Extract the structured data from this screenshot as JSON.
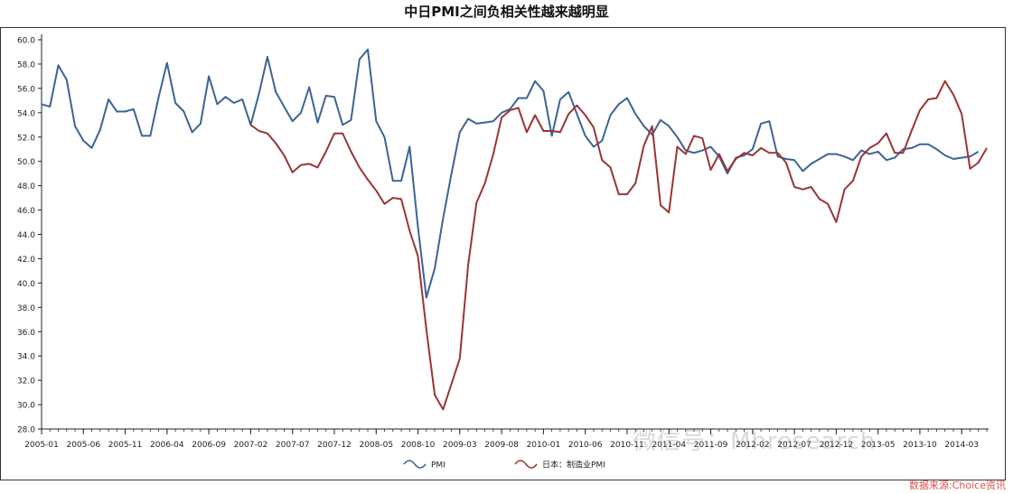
{
  "chart_data": {
    "type": "line",
    "title": "中日PMI之间负相关性越来越明显",
    "source": "数据来源:Choice资讯",
    "watermark": "微信号：Mhresearch",
    "ylim": [
      28.0,
      60.0
    ],
    "y_ticks": [
      "28.0",
      "30.0",
      "32.0",
      "34.0",
      "36.0",
      "38.0",
      "40.0",
      "42.0",
      "44.0",
      "46.0",
      "48.0",
      "50.0",
      "52.0",
      "54.0",
      "56.0",
      "58.0",
      "60.0"
    ],
    "x_tick_labels": [
      "2005-01",
      "2005-06",
      "2005-11",
      "2006-04",
      "2006-09",
      "2007-02",
      "2007-07",
      "2007-12",
      "2008-05",
      "2008-10",
      "2009-03",
      "2009-08",
      "2010-01",
      "2010-06",
      "2010-11",
      "2011-04",
      "2011-09",
      "2012-02",
      "2012-07",
      "2012-12",
      "2013-05",
      "2013-10",
      "2014-03"
    ],
    "legend_position": "bottom-center",
    "grid": false,
    "x_start": "2005-01",
    "x_end": "2014-06",
    "series": [
      {
        "name": "PMI",
        "color": "#3c6494",
        "start": "2005-01",
        "values": [
          54.7,
          54.5,
          57.9,
          56.7,
          52.9,
          51.7,
          51.1,
          52.6,
          55.1,
          54.1,
          54.1,
          54.3,
          52.1,
          52.1,
          55.3,
          58.1,
          54.8,
          54.1,
          52.4,
          53.1,
          57.0,
          54.7,
          55.3,
          54.8,
          55.1,
          53.0,
          55.6,
          58.6,
          55.7,
          54.5,
          53.3,
          54.0,
          56.1,
          53.2,
          55.4,
          55.3,
          53.0,
          53.4,
          58.4,
          59.2,
          53.3,
          52.0,
          48.4,
          48.4,
          51.2,
          44.6,
          38.8,
          41.2,
          45.3,
          49.0,
          52.4,
          53.5,
          53.1,
          53.2,
          53.3,
          54.0,
          54.3,
          55.2,
          55.2,
          56.6,
          55.8,
          52.1,
          55.1,
          55.7,
          53.9,
          52.1,
          51.2,
          51.7,
          53.8,
          54.7,
          55.2,
          53.9,
          52.9,
          52.2,
          53.4,
          52.9,
          52.0,
          50.9,
          50.7,
          50.9,
          51.2,
          50.4,
          49.0,
          50.3,
          50.5,
          51.0,
          53.1,
          53.3,
          50.4,
          50.2,
          50.1,
          49.2,
          49.8,
          50.2,
          50.6,
          50.6,
          50.4,
          50.1,
          50.9,
          50.6,
          50.8,
          50.1,
          50.3,
          51.0,
          51.1,
          51.4,
          51.4,
          51.0,
          50.5,
          50.2,
          50.3,
          50.4,
          50.8
        ]
      },
      {
        "name": "日本：制造业PMI",
        "color": "#9a3535",
        "start": "2007-02",
        "values": [
          53.0,
          52.5,
          52.3,
          51.5,
          50.5,
          49.1,
          49.7,
          49.8,
          49.5,
          50.8,
          52.3,
          52.3,
          50.8,
          49.5,
          48.5,
          47.6,
          46.5,
          47.0,
          46.9,
          44.3,
          42.2,
          36.2,
          30.8,
          29.6,
          31.7,
          33.8,
          41.5,
          46.6,
          48.2,
          50.6,
          53.6,
          54.2,
          54.4,
          52.4,
          53.8,
          52.5,
          52.5,
          52.4,
          53.9,
          54.6,
          53.8,
          52.8,
          50.1,
          49.5,
          47.3,
          47.3,
          48.2,
          51.3,
          52.9,
          46.4,
          45.8,
          51.2,
          50.6,
          52.1,
          51.9,
          49.3,
          50.6,
          49.2,
          50.2,
          50.7,
          50.5,
          51.1,
          50.7,
          50.7,
          49.9,
          47.9,
          47.7,
          47.9,
          46.9,
          46.5,
          45.0,
          47.7,
          48.4,
          50.4,
          51.1,
          51.5,
          52.3,
          50.7,
          50.7,
          52.5,
          54.2,
          55.1,
          55.2,
          56.6,
          55.5,
          53.9,
          49.4,
          49.9,
          51.1
        ]
      }
    ]
  }
}
